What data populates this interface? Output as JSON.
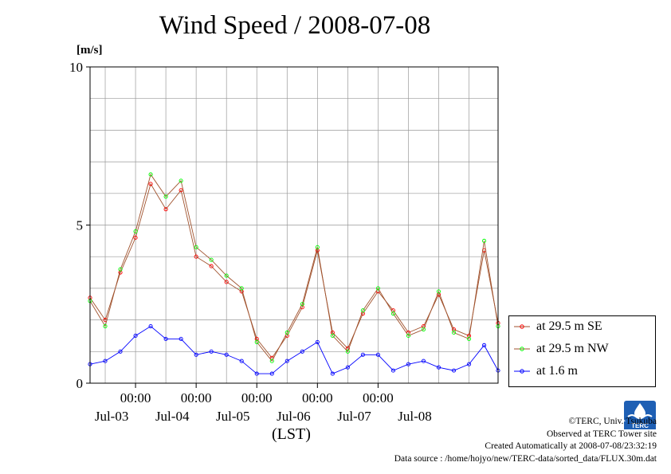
{
  "title": "Wind Speed / 2008-07-08",
  "ylabel": "[m/s]",
  "xlabel": "(LST)",
  "credits": {
    "copyright": "©TERC, Univ. Tsukuba",
    "site": "Observed at TERC Tower site",
    "created": "Created Automatically at 2008-07-08/23:32:19",
    "source": "Data source : /home/hojyo/new/TERC-data/sorted_data/FLUX.30m.dat"
  },
  "logo_text": "TERC",
  "colors": {
    "series_se": "#ff0000",
    "series_nw": "#00ff00",
    "series_ground": "#0000ff",
    "connector": "#a0522d"
  },
  "chart_data": {
    "type": "line",
    "ylim": [
      0,
      10
    ],
    "yticks": [
      0,
      5,
      10
    ],
    "xlim": [
      "2008-07-02 06:00",
      "2008-07-08 23:30"
    ],
    "time_ticks": [
      "00:00",
      "00:00",
      "00:00",
      "00:00",
      "00:00"
    ],
    "date_labels": [
      "Jul-03",
      "Jul-04",
      "Jul-05",
      "Jul-06",
      "Jul-07",
      "Jul-08"
    ],
    "grid": true,
    "legend_position": "right",
    "series": [
      {
        "name": "at 29.5 m SE",
        "x": [
          "2008-07-02 06:00",
          "2008-07-02 12:00",
          "2008-07-02 18:00",
          "2008-07-03 00:00",
          "2008-07-03 06:00",
          "2008-07-03 12:00",
          "2008-07-03 18:00",
          "2008-07-04 00:00",
          "2008-07-04 06:00",
          "2008-07-04 12:00",
          "2008-07-04 18:00",
          "2008-07-05 00:00",
          "2008-07-05 06:00",
          "2008-07-05 12:00",
          "2008-07-05 18:00",
          "2008-07-06 00:00",
          "2008-07-06 06:00",
          "2008-07-06 12:00",
          "2008-07-06 18:00",
          "2008-07-07 00:00",
          "2008-07-07 06:00",
          "2008-07-07 12:00",
          "2008-07-07 18:00",
          "2008-07-08 00:00",
          "2008-07-08 06:00",
          "2008-07-08 12:00",
          "2008-07-08 18:00",
          "2008-07-08 23:30"
        ],
        "y": [
          2.7,
          2.0,
          3.5,
          4.6,
          6.3,
          5.5,
          6.1,
          4.0,
          3.7,
          3.2,
          2.9,
          1.4,
          0.8,
          1.5,
          2.4,
          4.2,
          1.6,
          1.1,
          2.2,
          2.9,
          2.3,
          1.6,
          1.8,
          2.8,
          1.7,
          1.5,
          4.2,
          1.9
        ]
      },
      {
        "name": "at 29.5 m NW",
        "x": [
          "2008-07-02 06:00",
          "2008-07-02 12:00",
          "2008-07-02 18:00",
          "2008-07-03 00:00",
          "2008-07-03 06:00",
          "2008-07-03 12:00",
          "2008-07-03 18:00",
          "2008-07-04 00:00",
          "2008-07-04 06:00",
          "2008-07-04 12:00",
          "2008-07-04 18:00",
          "2008-07-05 00:00",
          "2008-07-05 06:00",
          "2008-07-05 12:00",
          "2008-07-05 18:00",
          "2008-07-06 00:00",
          "2008-07-06 06:00",
          "2008-07-06 12:00",
          "2008-07-06 18:00",
          "2008-07-07 00:00",
          "2008-07-07 06:00",
          "2008-07-07 12:00",
          "2008-07-07 18:00",
          "2008-07-08 00:00",
          "2008-07-08 06:00",
          "2008-07-08 12:00",
          "2008-07-08 18:00",
          "2008-07-08 23:30"
        ],
        "y": [
          2.6,
          1.8,
          3.6,
          4.8,
          6.6,
          5.9,
          6.4,
          4.3,
          3.9,
          3.4,
          3.0,
          1.3,
          0.7,
          1.6,
          2.5,
          4.3,
          1.5,
          1.0,
          2.3,
          3.0,
          2.2,
          1.5,
          1.7,
          2.9,
          1.6,
          1.4,
          4.5,
          1.8
        ]
      },
      {
        "name": "at 1.6 m",
        "x": [
          "2008-07-02 06:00",
          "2008-07-02 12:00",
          "2008-07-02 18:00",
          "2008-07-03 00:00",
          "2008-07-03 06:00",
          "2008-07-03 12:00",
          "2008-07-03 18:00",
          "2008-07-04 00:00",
          "2008-07-04 06:00",
          "2008-07-04 12:00",
          "2008-07-04 18:00",
          "2008-07-05 00:00",
          "2008-07-05 06:00",
          "2008-07-05 12:00",
          "2008-07-05 18:00",
          "2008-07-06 00:00",
          "2008-07-06 06:00",
          "2008-07-06 12:00",
          "2008-07-06 18:00",
          "2008-07-07 00:00",
          "2008-07-07 06:00",
          "2008-07-07 12:00",
          "2008-07-07 18:00",
          "2008-07-08 00:00",
          "2008-07-08 06:00",
          "2008-07-08 12:00",
          "2008-07-08 18:00",
          "2008-07-08 23:30"
        ],
        "y": [
          0.6,
          0.7,
          1.0,
          1.5,
          1.8,
          1.4,
          1.4,
          0.9,
          1.0,
          0.9,
          0.7,
          0.3,
          0.3,
          0.7,
          1.0,
          1.3,
          0.3,
          0.5,
          0.9,
          0.9,
          0.4,
          0.6,
          0.7,
          0.5,
          0.4,
          0.6,
          1.2,
          0.4
        ]
      }
    ]
  }
}
